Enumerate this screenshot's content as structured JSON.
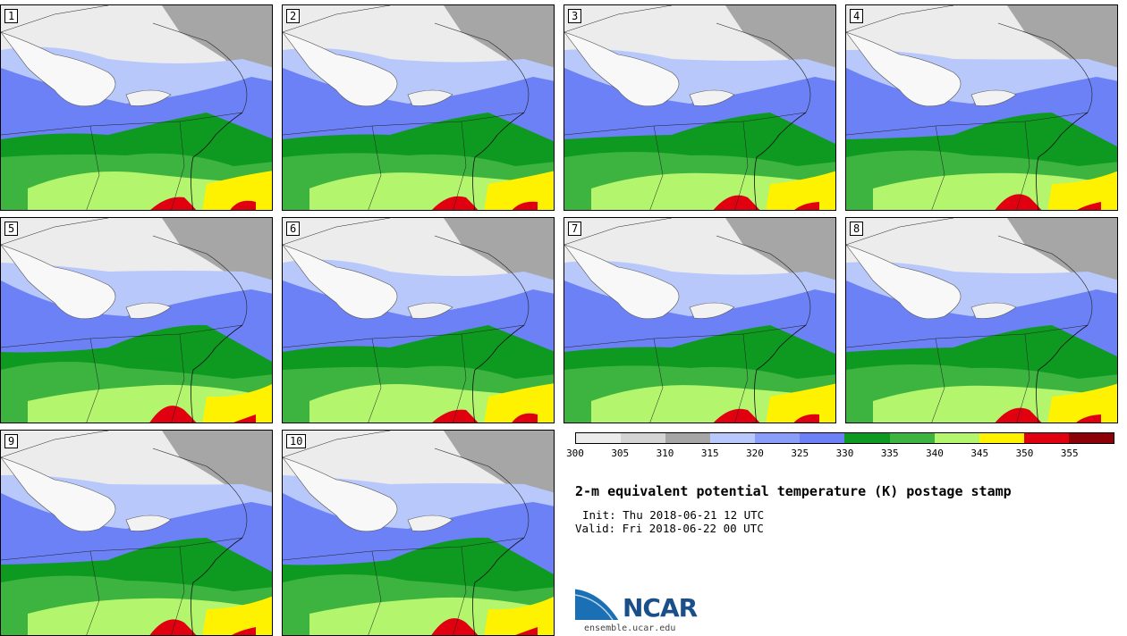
{
  "panels": [
    {
      "label": "1"
    },
    {
      "label": "2"
    },
    {
      "label": "3"
    },
    {
      "label": "4"
    },
    {
      "label": "5"
    },
    {
      "label": "6"
    },
    {
      "label": "7"
    },
    {
      "label": "8"
    },
    {
      "label": "9"
    },
    {
      "label": "10"
    }
  ],
  "legend": {
    "colors": [
      "#ececec",
      "#d4d4d4",
      "#a6a6a6",
      "#b8c8fb",
      "#8a9ef9",
      "#6b81f5",
      "#0e9a21",
      "#3cb43f",
      "#b3f56d",
      "#fff200",
      "#e00010",
      "#8e0008"
    ],
    "ticks": [
      "300",
      "305",
      "310",
      "315",
      "320",
      "325",
      "330",
      "335",
      "340",
      "345",
      "350",
      "355"
    ]
  },
  "title": "2-m equivalent potential temperature (K) postage stamp",
  "init": "Init: Thu 2018-06-21 12 UTC",
  "valid": "Valid: Fri 2018-06-22 00 UTC",
  "logo": {
    "name": "NCAR",
    "url": "ensemble.ucar.edu"
  }
}
